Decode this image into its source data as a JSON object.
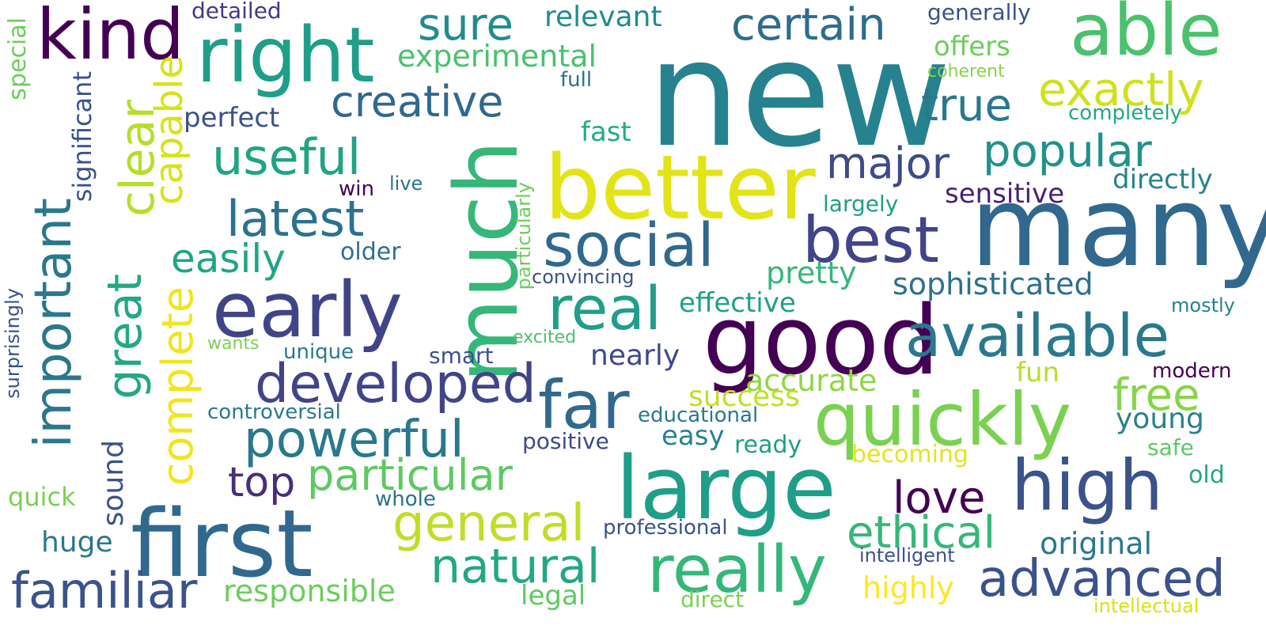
{
  "words": [
    {
      "text": "new",
      "color": "#26828e"
    },
    {
      "text": "many",
      "color": "#31688e"
    },
    {
      "text": "much",
      "color": "#35b779"
    },
    {
      "text": "better",
      "color": "#e2e418"
    },
    {
      "text": "good",
      "color": "#440154"
    },
    {
      "text": "first",
      "color": "#31688e"
    },
    {
      "text": "large",
      "color": "#1f9e89"
    },
    {
      "text": "quickly",
      "color": "#7ad151"
    },
    {
      "text": "early",
      "color": "#414487"
    },
    {
      "text": "right",
      "color": "#1f9e89"
    },
    {
      "text": "kind",
      "color": "#440154"
    },
    {
      "text": "able",
      "color": "#4ac16d"
    },
    {
      "text": "really",
      "color": "#35b779"
    },
    {
      "text": "far",
      "color": "#31688e"
    },
    {
      "text": "high",
      "color": "#3b528b"
    },
    {
      "text": "best",
      "color": "#414487"
    },
    {
      "text": "social",
      "color": "#31688e"
    },
    {
      "text": "available",
      "color": "#2a788e"
    },
    {
      "text": "real",
      "color": "#1f9e89"
    },
    {
      "text": "developed",
      "color": "#414487"
    },
    {
      "text": "important",
      "color": "#2a788e"
    },
    {
      "text": "familiar",
      "color": "#3b528b"
    },
    {
      "text": "advanced",
      "color": "#3b528b"
    },
    {
      "text": "general",
      "color": "#bddf26"
    },
    {
      "text": "powerful",
      "color": "#2a788e"
    },
    {
      "text": "natural",
      "color": "#22a884"
    },
    {
      "text": "latest",
      "color": "#2c728e"
    },
    {
      "text": "creative",
      "color": "#31688e"
    },
    {
      "text": "popular",
      "color": "#21918c"
    },
    {
      "text": "exactly",
      "color": "#d0e11c"
    },
    {
      "text": "particular",
      "color": "#5ec962"
    },
    {
      "text": "free",
      "color": "#86d549"
    },
    {
      "text": "certain",
      "color": "#2f6c8e"
    },
    {
      "text": "sure",
      "color": "#228c8d"
    },
    {
      "text": "useful",
      "color": "#20a386"
    },
    {
      "text": "great",
      "color": "#22a884"
    },
    {
      "text": "complete",
      "color": "#f1e51d"
    },
    {
      "text": "clear",
      "color": "#b5de2b"
    },
    {
      "text": "ethical",
      "color": "#35b779"
    },
    {
      "text": "major",
      "color": "#3e4a89"
    },
    {
      "text": "true",
      "color": "#2a788e"
    },
    {
      "text": "love",
      "color": "#440154"
    },
    {
      "text": "capable",
      "color": "#d8e219"
    },
    {
      "text": "top",
      "color": "#472d7b"
    },
    {
      "text": "easily",
      "color": "#20a486"
    },
    {
      "text": "responsible",
      "color": "#6ccd5a"
    },
    {
      "text": "sophisticated",
      "color": "#2d708e"
    },
    {
      "text": "original",
      "color": "#2a788e"
    },
    {
      "text": "huge",
      "color": "#2a788e"
    },
    {
      "text": "accurate",
      "color": "#8fd744"
    },
    {
      "text": "success",
      "color": "#c0df25"
    },
    {
      "text": "highly",
      "color": "#fde725"
    },
    {
      "text": "experimental",
      "color": "#4ac16d"
    },
    {
      "text": "relevant",
      "color": "#238a8d"
    },
    {
      "text": "effective",
      "color": "#1fa088"
    },
    {
      "text": "pretty",
      "color": "#35b779"
    },
    {
      "text": "sensitive",
      "color": "#482173"
    },
    {
      "text": "significant",
      "color": "#3b528b"
    },
    {
      "text": "sound",
      "color": "#3b528b"
    },
    {
      "text": "legal",
      "color": "#5ec962"
    },
    {
      "text": "young",
      "color": "#26828e"
    },
    {
      "text": "nearly",
      "color": "#3e4989"
    },
    {
      "text": "perfect",
      "color": "#3b528b"
    },
    {
      "text": "fun",
      "color": "#b5de2b"
    },
    {
      "text": "easy",
      "color": "#26828e"
    },
    {
      "text": "becoming",
      "color": "#e5e419"
    },
    {
      "text": "offers",
      "color": "#6ccd5a"
    },
    {
      "text": "directly",
      "color": "#26828e"
    },
    {
      "text": "older",
      "color": "#2d708e"
    },
    {
      "text": "fast",
      "color": "#25ab82"
    },
    {
      "text": "detailed",
      "color": "#443983"
    },
    {
      "text": "generally",
      "color": "#3b528b"
    },
    {
      "text": "direct",
      "color": "#7ad151"
    },
    {
      "text": "professional",
      "color": "#3b528b"
    },
    {
      "text": "controversial",
      "color": "#2a788e"
    },
    {
      "text": "special",
      "color": "#6ccd5a"
    },
    {
      "text": "surprisingly",
      "color": "#3b528b"
    },
    {
      "text": "quick",
      "color": "#7ad151"
    },
    {
      "text": "whole",
      "color": "#2c728e"
    },
    {
      "text": "positive",
      "color": "#3e4a89"
    },
    {
      "text": "educational",
      "color": "#2a788e"
    },
    {
      "text": "ready",
      "color": "#1f9e89"
    },
    {
      "text": "safe",
      "color": "#5ec962"
    },
    {
      "text": "old",
      "color": "#22a884"
    },
    {
      "text": "modern",
      "color": "#440154"
    },
    {
      "text": "mostly",
      "color": "#26828e"
    },
    {
      "text": "largely",
      "color": "#1f9e89"
    },
    {
      "text": "smart",
      "color": "#3b528b"
    },
    {
      "text": "convincing",
      "color": "#3b528b"
    },
    {
      "text": "particularly",
      "color": "#6ccd5a"
    },
    {
      "text": "unique",
      "color": "#2a788e"
    },
    {
      "text": "wants",
      "color": "#7ad151"
    },
    {
      "text": "excited",
      "color": "#4ac16d"
    },
    {
      "text": "win",
      "color": "#440154"
    },
    {
      "text": "live",
      "color": "#2c728e"
    },
    {
      "text": "full",
      "color": "#2d708e"
    },
    {
      "text": "coherent",
      "color": "#86d549"
    },
    {
      "text": "completely",
      "color": "#22a884"
    },
    {
      "text": "intelligent",
      "color": "#3b528b"
    },
    {
      "text": "intellectual",
      "color": "#d8e219"
    }
  ]
}
